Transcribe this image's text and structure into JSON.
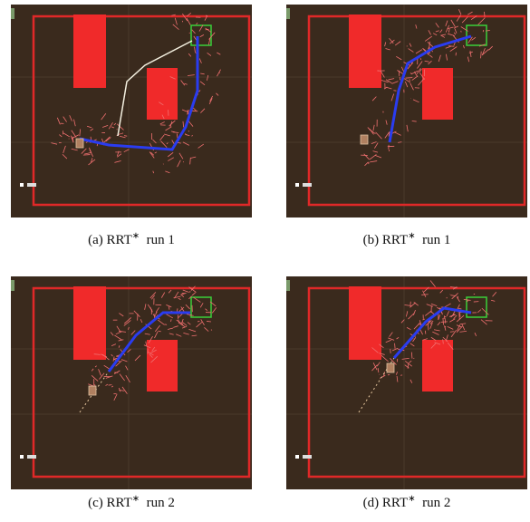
{
  "figure": {
    "panels": [
      {
        "label": "(a)",
        "method": "RRT",
        "sup": "∗",
        "run": "run 1"
      },
      {
        "label": "(b)",
        "method": "RRT",
        "sup": "∗",
        "run": "run 1"
      },
      {
        "label": "(c)",
        "method": "RRT",
        "sup": "∗",
        "run": "run 2"
      },
      {
        "label": "(d)",
        "method": "RRT",
        "sup": "∗",
        "run": "run 2"
      }
    ]
  }
}
